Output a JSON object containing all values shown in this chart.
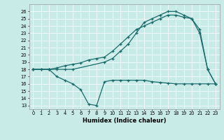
{
  "xlabel": "Humidex (Indice chaleur)",
  "xlim": [
    -0.5,
    23.5
  ],
  "ylim": [
    12.5,
    27
  ],
  "yticks": [
    13,
    14,
    15,
    16,
    17,
    18,
    19,
    20,
    21,
    22,
    23,
    24,
    25,
    26
  ],
  "xticks": [
    0,
    1,
    2,
    3,
    4,
    5,
    6,
    7,
    8,
    9,
    10,
    11,
    12,
    13,
    14,
    15,
    16,
    17,
    18,
    19,
    20,
    21,
    22,
    23
  ],
  "bg_color": "#c8ebe8",
  "line_color": "#1a6b6b",
  "line1_x": [
    0,
    1,
    2,
    3,
    4,
    5,
    9,
    10,
    11,
    12,
    13,
    14,
    15,
    16,
    17,
    18,
    19,
    20,
    21,
    22,
    23
  ],
  "line1_y": [
    18,
    18,
    18,
    18,
    18,
    18,
    19,
    19.5,
    20.5,
    21.5,
    23,
    24.5,
    25,
    25.5,
    26,
    26,
    25.5,
    25,
    23,
    18,
    16
  ],
  "line2_x": [
    0,
    1,
    2,
    3,
    4,
    5,
    6,
    7,
    8,
    9,
    10,
    11,
    12,
    13,
    14,
    15,
    16,
    17,
    18,
    19,
    20,
    21,
    22,
    23
  ],
  "line2_y": [
    18,
    18,
    18,
    18.2,
    18.5,
    18.7,
    18.9,
    19.3,
    19.5,
    19.7,
    20.5,
    21.5,
    22.5,
    23.5,
    24.0,
    24.5,
    25,
    25.5,
    25.5,
    25.2,
    25.0,
    23.5,
    18,
    16
  ],
  "line3_x": [
    0,
    2,
    3,
    4,
    5,
    6,
    7,
    8,
    9,
    10,
    11,
    12,
    13,
    14,
    15,
    16,
    17,
    18,
    19,
    20,
    21,
    22,
    23
  ],
  "line3_y": [
    18,
    18,
    17,
    16.5,
    16,
    15.2,
    13.2,
    13,
    16.3,
    16.5,
    16.5,
    16.5,
    16.5,
    16.5,
    16.3,
    16.2,
    16.1,
    16,
    16,
    16,
    16,
    16,
    16
  ]
}
